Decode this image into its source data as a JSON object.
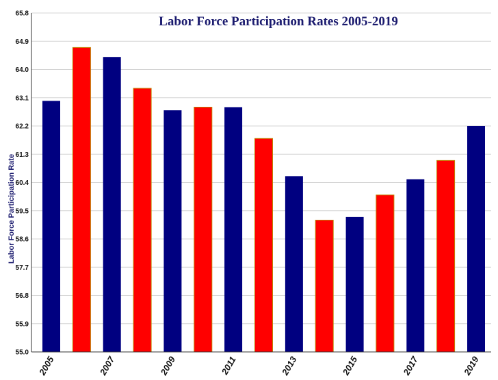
{
  "chart_data": {
    "type": "bar",
    "title": "Labor Force Participation Rates  2005-2019",
    "xlabel": "",
    "ylabel": "Labor Force Participation Rate",
    "ylim": [
      55.0,
      65.8
    ],
    "yticks": [
      "55.0",
      "55.9",
      "56.8",
      "57.7",
      "58.6",
      "59.5",
      "60.4",
      "61.3",
      "62.2",
      "63.1",
      "64.0",
      "64.9",
      "65.8"
    ],
    "categories": [
      "2005",
      "2006",
      "2007",
      "2008",
      "2009",
      "2010",
      "2011",
      "2012",
      "2013",
      "2014",
      "2015",
      "2016",
      "2017",
      "2018",
      "2019"
    ],
    "xtick_labels": [
      "2005",
      "2007",
      "2009",
      "2011",
      "2013",
      "2015",
      "2017",
      "2019"
    ],
    "values": [
      63.0,
      64.7,
      64.4,
      63.4,
      62.7,
      62.8,
      62.8,
      61.8,
      60.6,
      59.2,
      59.3,
      60.0,
      60.5,
      61.1,
      62.2
    ],
    "colors": [
      "#000080",
      "#ff0000"
    ],
    "grid": true,
    "legend": "none"
  }
}
